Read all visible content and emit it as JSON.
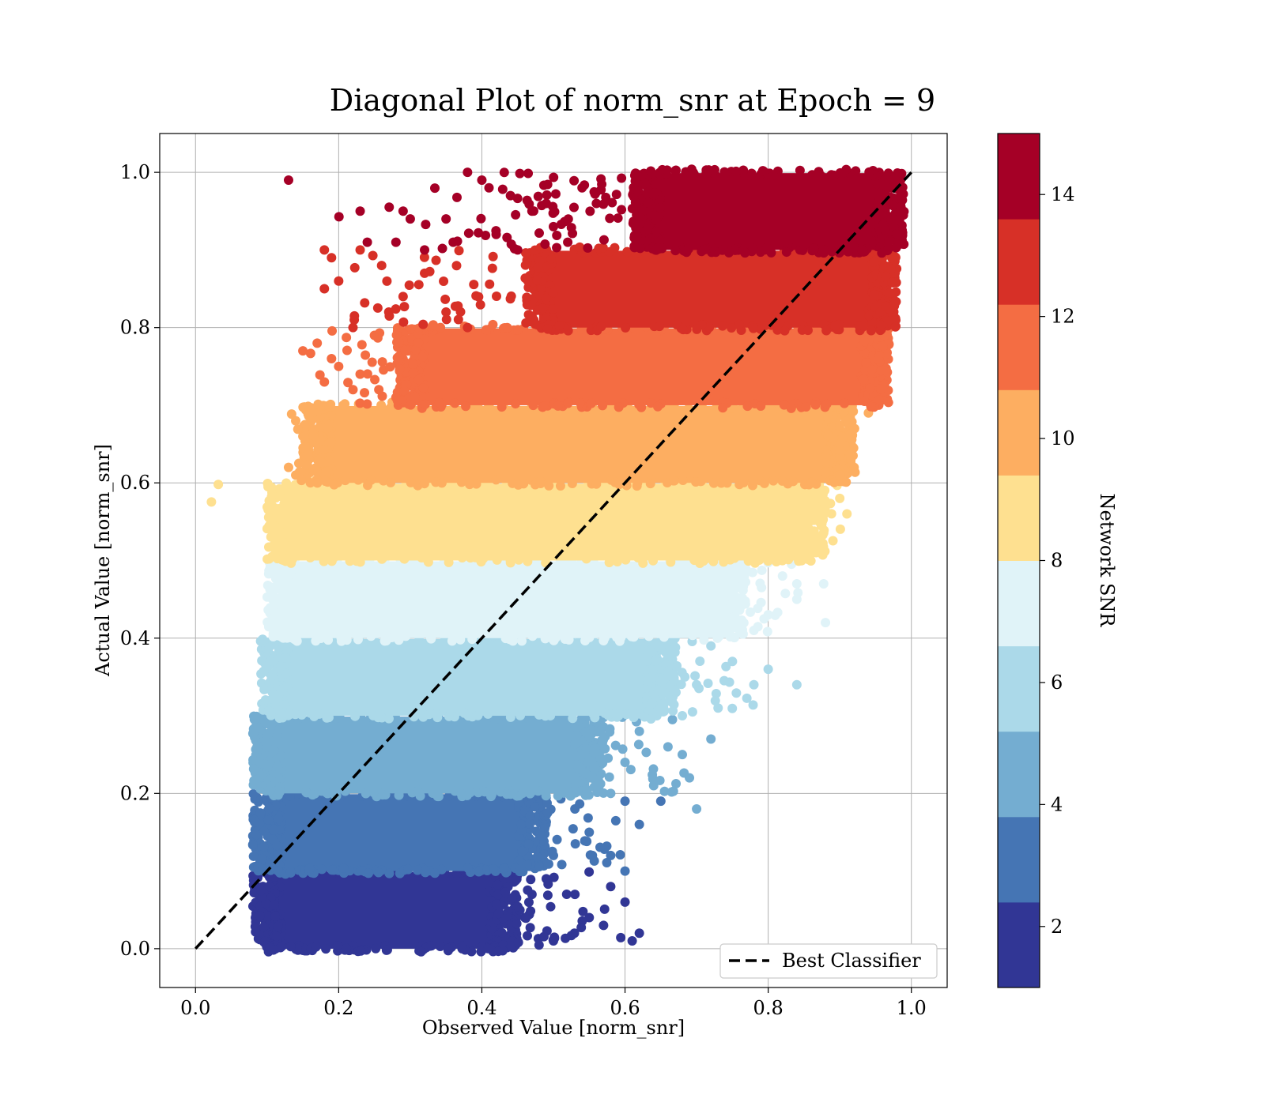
{
  "chart_data": {
    "type": "scatter",
    "title": "Diagonal Plot of norm_snr at Epoch = 9",
    "xlabel": "Observed Value [norm_snr]",
    "ylabel": "Actual Value [norm_snr]",
    "xlim": [
      -0.05,
      1.05
    ],
    "ylim": [
      -0.05,
      1.05
    ],
    "grid": true,
    "xticks": [
      "0.0",
      "0.2",
      "0.4",
      "0.6",
      "0.8",
      "1.0"
    ],
    "yticks": [
      "0.0",
      "0.2",
      "0.4",
      "0.6",
      "0.8",
      "1.0"
    ],
    "legend": {
      "placement": "lower-right",
      "entries": [
        "Best Classifier"
      ]
    },
    "reference_line": {
      "label": "Best Classifier",
      "x": [
        0,
        1
      ],
      "y": [
        0,
        1
      ],
      "style": "dashed",
      "color": "#000000"
    },
    "colorbar": {
      "label": "Network SNR",
      "range": [
        1,
        15
      ],
      "ticks": [
        "2",
        "4",
        "6",
        "8",
        "10",
        "12",
        "14"
      ],
      "colors": [
        "#313695",
        "#4575b4",
        "#74add1",
        "#abd9e9",
        "#e0f3f8",
        "#fee090",
        "#fdae61",
        "#f46d43",
        "#d73027",
        "#a50026"
      ]
    },
    "bands": [
      {
        "y": [
          0.0,
          0.1
        ],
        "x_core": [
          0.1,
          0.43
        ],
        "color": "#313695",
        "stragglers": [
          [
            0.47,
            0.07
          ],
          [
            0.5,
            0.01
          ],
          [
            0.55,
            0.04
          ],
          [
            0.6,
            0.06
          ],
          [
            0.62,
            0.02
          ],
          [
            0.61,
            0.01
          ],
          [
            0.57,
            0.03
          ],
          [
            0.53,
            0.07
          ],
          [
            0.58,
            0.08
          ],
          [
            0.46,
            0.04
          ],
          [
            0.49,
            0.09
          ]
        ]
      },
      {
        "y": [
          0.1,
          0.2
        ],
        "x_core": [
          0.1,
          0.47
        ],
        "color": "#4575b4",
        "stragglers": [
          [
            0.6,
            0.19
          ],
          [
            0.62,
            0.16
          ],
          [
            0.58,
            0.12
          ],
          [
            0.55,
            0.15
          ],
          [
            0.5,
            0.12
          ],
          [
            0.65,
            0.19
          ],
          [
            0.6,
            0.1
          ],
          [
            0.53,
            0.18
          ]
        ]
      },
      {
        "y": [
          0.2,
          0.3
        ],
        "x_core": [
          0.1,
          0.55
        ],
        "color": "#74add1",
        "stragglers": [
          [
            0.7,
            0.18
          ],
          [
            0.69,
            0.22
          ],
          [
            0.68,
            0.25
          ],
          [
            0.64,
            0.21
          ],
          [
            0.62,
            0.28
          ],
          [
            0.6,
            0.24
          ],
          [
            0.72,
            0.27
          ],
          [
            0.66,
            0.26
          ],
          [
            0.58,
            0.2
          ]
        ]
      },
      {
        "y": [
          0.3,
          0.4
        ],
        "x_core": [
          0.11,
          0.65
        ],
        "color": "#abd9e9",
        "stragglers": [
          [
            0.84,
            0.34
          ],
          [
            0.8,
            0.36
          ],
          [
            0.78,
            0.34
          ],
          [
            0.75,
            0.37
          ],
          [
            0.73,
            0.31
          ],
          [
            0.7,
            0.34
          ],
          [
            0.72,
            0.39
          ],
          [
            0.68,
            0.3
          ]
        ]
      },
      {
        "y": [
          0.4,
          0.5
        ],
        "x_core": [
          0.12,
          0.75
        ],
        "color": "#e0f3f8",
        "stragglers": [
          [
            0.88,
            0.42
          ],
          [
            0.84,
            0.45
          ],
          [
            0.84,
            0.47
          ],
          [
            0.82,
            0.48
          ],
          [
            0.8,
            0.43
          ],
          [
            0.78,
            0.41
          ]
        ]
      },
      {
        "y": [
          0.5,
          0.6
        ],
        "x_core": [
          0.12,
          0.86
        ],
        "color": "#fee090",
        "stragglers": [
          [
            0.91,
            0.56
          ],
          [
            0.9,
            0.58
          ],
          [
            0.86,
            0.52
          ],
          [
            0.12,
            0.59
          ],
          [
            0.11,
            0.54
          ],
          [
            0.12,
            0.52
          ],
          [
            0.84,
            0.51
          ]
        ]
      },
      {
        "y": [
          0.6,
          0.7
        ],
        "x_core": [
          0.17,
          0.9
        ],
        "color": "#fdae61",
        "stragglers": [
          [
            0.94,
            0.69
          ],
          [
            0.92,
            0.62
          ],
          [
            0.9,
            0.61
          ],
          [
            0.14,
            0.68
          ],
          [
            0.15,
            0.66
          ],
          [
            0.14,
            0.61
          ],
          [
            0.13,
            0.62
          ]
        ]
      },
      {
        "y": [
          0.7,
          0.8
        ],
        "x_core": [
          0.3,
          0.95
        ],
        "color": "#f46d43",
        "stragglers": [
          [
            0.15,
            0.77
          ],
          [
            0.17,
            0.78
          ],
          [
            0.19,
            0.76
          ],
          [
            0.18,
            0.73
          ],
          [
            0.2,
            0.75
          ],
          [
            0.22,
            0.72
          ],
          [
            0.25,
            0.79
          ],
          [
            0.23,
            0.74
          ],
          [
            0.28,
            0.71
          ]
        ]
      },
      {
        "y": [
          0.8,
          0.9
        ],
        "x_core": [
          0.48,
          0.96
        ],
        "color": "#d73027",
        "stragglers": [
          [
            0.18,
            0.9
          ],
          [
            0.19,
            0.89
          ],
          [
            0.18,
            0.85
          ],
          [
            0.2,
            0.86
          ],
          [
            0.23,
            0.9
          ],
          [
            0.26,
            0.88
          ],
          [
            0.29,
            0.84
          ],
          [
            0.32,
            0.87
          ],
          [
            0.35,
            0.82
          ],
          [
            0.38,
            0.8
          ],
          [
            0.22,
            0.8
          ],
          [
            0.27,
            0.82
          ]
        ]
      },
      {
        "y": [
          0.9,
          1.0
        ],
        "x_core": [
          0.63,
          0.97
        ],
        "color": "#a50026",
        "stragglers": [
          [
            0.13,
            0.99
          ],
          [
            0.23,
            0.95
          ],
          [
            0.24,
            0.91
          ],
          [
            0.28,
            0.91
          ],
          [
            0.29,
            0.95
          ],
          [
            0.3,
            0.94
          ],
          [
            0.32,
            0.9
          ],
          [
            0.35,
            0.94
          ],
          [
            0.36,
            0.91
          ],
          [
            0.38,
            1.0
          ],
          [
            0.4,
            0.99
          ],
          [
            0.41,
            0.98
          ],
          [
            0.42,
            0.92
          ],
          [
            0.44,
            0.97
          ],
          [
            0.45,
            0.9
          ],
          [
            0.47,
            0.95
          ],
          [
            0.49,
            0.96
          ],
          [
            0.5,
            0.93
          ],
          [
            0.52,
            0.91
          ],
          [
            0.54,
            0.98
          ],
          [
            0.56,
            0.96
          ]
        ]
      }
    ]
  }
}
